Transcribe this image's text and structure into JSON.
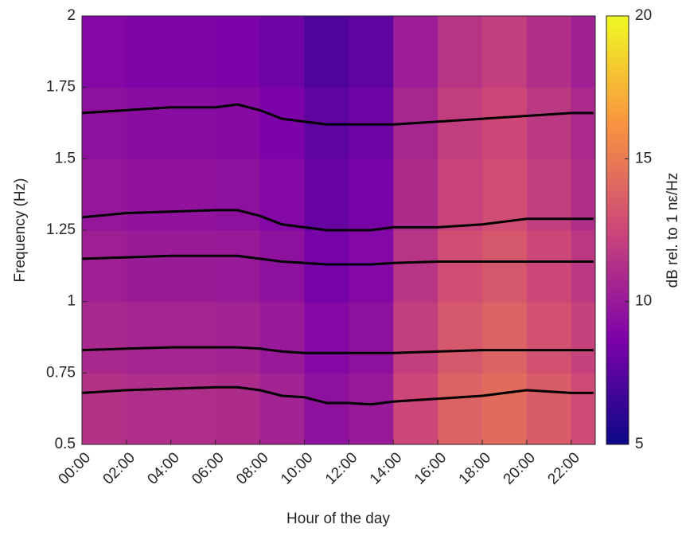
{
  "chart_data": {
    "type": "heatmap",
    "xlabel": "Hour of the day",
    "ylabel": "Frequency (Hz)",
    "colorbar_label": "dB rel. to 1 nε/Hz",
    "xlim": [
      0,
      23.08
    ],
    "ylim": [
      0.5,
      2
    ],
    "xticks": [
      {
        "value": 0,
        "label": "00:00"
      },
      {
        "value": 2,
        "label": "02:00"
      },
      {
        "value": 4,
        "label": "04:00"
      },
      {
        "value": 6,
        "label": "06:00"
      },
      {
        "value": 8,
        "label": "08:00"
      },
      {
        "value": 10,
        "label": "10:00"
      },
      {
        "value": 12,
        "label": "12:00"
      },
      {
        "value": 14,
        "label": "14:00"
      },
      {
        "value": 16,
        "label": "16:00"
      },
      {
        "value": 18,
        "label": "18:00"
      },
      {
        "value": 20,
        "label": "20:00"
      },
      {
        "value": 22,
        "label": "22:00"
      }
    ],
    "yticks": [
      0.5,
      0.75,
      1,
      1.25,
      1.5,
      1.75,
      2
    ],
    "clim": [
      5,
      20
    ],
    "cticks": [
      5,
      10,
      15,
      20
    ],
    "colormap": [
      "#0d0887",
      "#7e03a8",
      "#cc4778",
      "#f89540",
      "#f0f921"
    ],
    "x_edges": [
      0,
      2,
      4,
      6,
      8,
      10,
      12,
      14,
      16,
      18,
      20,
      22,
      23.08
    ],
    "y_edges": [
      0.5,
      0.75,
      1,
      1.25,
      1.5,
      1.75,
      2
    ],
    "z": [
      [
        11.3,
        11.1,
        11.1,
        11,
        10.5,
        9.5,
        10,
        12.5,
        13.8,
        14.3,
        13.5,
        12.7
      ],
      [
        10.8,
        10.6,
        10.6,
        10.5,
        10,
        9,
        9.5,
        12,
        13.3,
        13.8,
        13,
        12.2
      ],
      [
        10.3,
        10.1,
        10.1,
        10,
        9.5,
        8.5,
        9,
        11.5,
        12.8,
        13.3,
        12.5,
        11.7
      ],
      [
        9.8,
        9.6,
        9.6,
        9.5,
        9,
        8,
        8.5,
        11,
        12.3,
        12.8,
        12,
        11.2
      ],
      [
        9.5,
        9.3,
        9.3,
        9.2,
        8.7,
        7.7,
        8.2,
        10.7,
        12,
        12.5,
        11.7,
        10.9
      ],
      [
        9,
        8.8,
        8.8,
        8.7,
        8.2,
        7.2,
        7.7,
        10.2,
        11.5,
        12,
        11.2,
        10.4
      ]
    ],
    "x": [
      0,
      2,
      4,
      6,
      7,
      8,
      9,
      10,
      11,
      12,
      13,
      14,
      16,
      18,
      20,
      22,
      23
    ],
    "series": [
      {
        "color": "#000000",
        "values": [
          1.66,
          1.67,
          1.68,
          1.68,
          1.69,
          1.67,
          1.64,
          1.63,
          1.62,
          1.62,
          1.62,
          1.62,
          1.63,
          1.64,
          1.65,
          1.66,
          1.66
        ]
      },
      {
        "color": "#000000",
        "values": [
          1.295,
          1.31,
          1.315,
          1.32,
          1.32,
          1.3,
          1.27,
          1.26,
          1.25,
          1.25,
          1.25,
          1.26,
          1.26,
          1.27,
          1.29,
          1.29,
          1.29
        ]
      },
      {
        "color": "#000000",
        "values": [
          1.15,
          1.155,
          1.16,
          1.16,
          1.16,
          1.15,
          1.14,
          1.135,
          1.13,
          1.13,
          1.13,
          1.135,
          1.14,
          1.14,
          1.14,
          1.14,
          1.14
        ]
      },
      {
        "color": "#000000",
        "values": [
          0.83,
          0.835,
          0.84,
          0.84,
          0.84,
          0.835,
          0.825,
          0.82,
          0.82,
          0.82,
          0.82,
          0.82,
          0.825,
          0.83,
          0.83,
          0.83,
          0.83
        ]
      },
      {
        "color": "#000000",
        "values": [
          0.68,
          0.69,
          0.695,
          0.7,
          0.7,
          0.69,
          0.67,
          0.665,
          0.645,
          0.645,
          0.64,
          0.65,
          0.66,
          0.67,
          0.69,
          0.68,
          0.68
        ]
      }
    ]
  }
}
